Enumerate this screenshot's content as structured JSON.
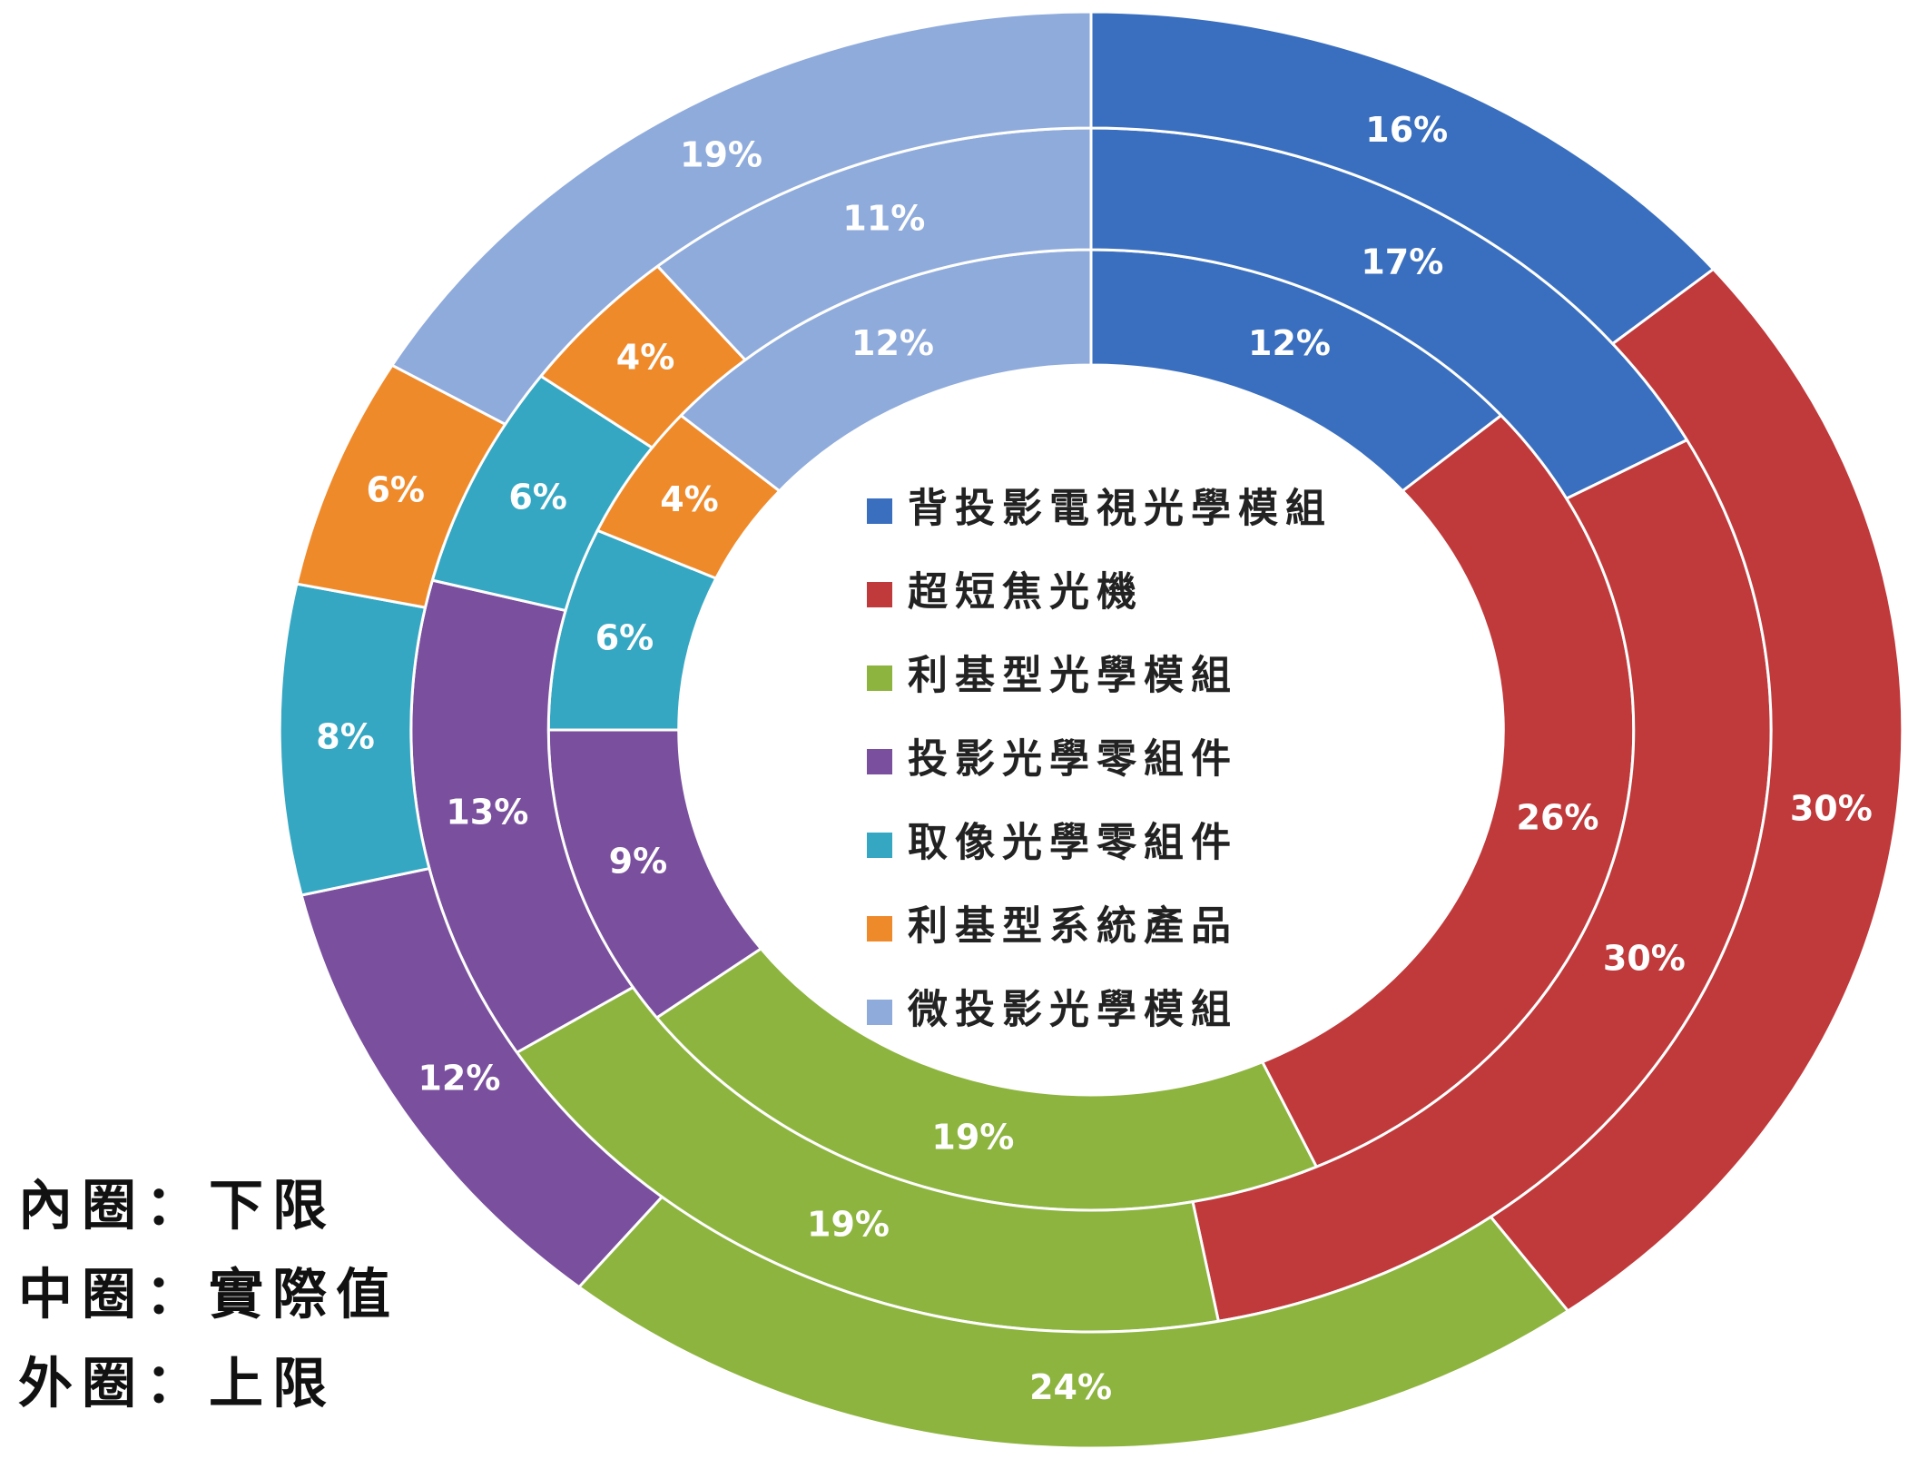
{
  "chart_data": {
    "type": "donut",
    "categories": [
      "背投影電視光學模組",
      "超短焦光機",
      "利基型光學模組",
      "投影光學零組件",
      "取像光學零組件",
      "利基型系統產品",
      "微投影光學模組"
    ],
    "colors": [
      "#3a6fbf",
      "#c0393b",
      "#8db43e",
      "#7a4f9e",
      "#35a7c2",
      "#ef8a2b",
      "#8fabdb"
    ],
    "series": [
      {
        "name": "內圈：下限",
        "values": [
          12,
          26,
          19,
          9,
          6,
          4,
          12
        ],
        "value_labels": [
          "12%",
          "26%",
          "19%",
          "9%",
          "6%",
          "4%",
          "12%"
        ]
      },
      {
        "name": "中圈：實際值",
        "values": [
          17,
          30,
          19,
          13,
          6,
          4,
          11
        ],
        "value_labels": [
          "17%",
          "30%",
          "19%",
          "13%",
          "6%",
          "4%",
          "11%"
        ]
      },
      {
        "name": "外圈：上限",
        "values": [
          16,
          30,
          24,
          12,
          8,
          6,
          19
        ],
        "value_labels": [
          "16%",
          "30%",
          "24%",
          "12%",
          "8%",
          "6%",
          "19%"
        ]
      }
    ]
  }
}
